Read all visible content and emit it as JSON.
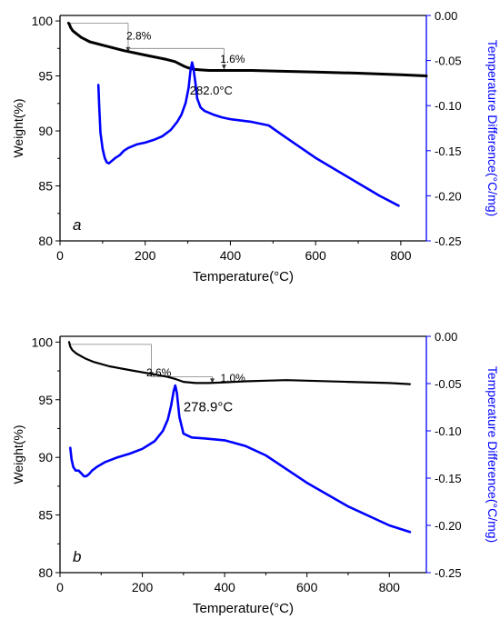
{
  "chart_data": [
    {
      "type": "line",
      "panel_label": "a",
      "xlabel": "Temperature(°C)",
      "ylabel_left": "Weight(%)",
      "ylabel_right": "Temperature Difference(°C/mg)",
      "xlim": [
        0,
        860
      ],
      "ylim_left": [
        80,
        100.5
      ],
      "ylim_right": [
        -0.25,
        0.0
      ],
      "x_ticks": [
        "0",
        "200",
        "400",
        "600",
        "800"
      ],
      "y_left_ticks": [
        "80",
        "85",
        "90",
        "95",
        "100"
      ],
      "y_right_ticks": [
        "0.00",
        "-0.05",
        "-0.10",
        "-0.15",
        "-0.20",
        "-0.25"
      ],
      "colors": {
        "weight": "#000000",
        "dta": "#0000ff"
      },
      "series": [
        {
          "axis": "left",
          "color": "#000000",
          "x": [
            20,
            22,
            25,
            30,
            40,
            50,
            70,
            100,
            150,
            200,
            250,
            270,
            290,
            300,
            315,
            330,
            350,
            400,
            450,
            500,
            600,
            700,
            800,
            860
          ],
          "values": [
            99.8,
            99.7,
            99.4,
            99.1,
            98.8,
            98.5,
            98.1,
            97.8,
            97.3,
            96.9,
            96.5,
            96.3,
            95.9,
            95.75,
            95.6,
            95.55,
            95.5,
            95.5,
            95.5,
            95.45,
            95.35,
            95.25,
            95.1,
            95.0
          ]
        },
        {
          "axis": "right",
          "color": "#0000ff",
          "x": [
            90,
            92,
            95,
            100,
            105,
            110,
            115,
            120,
            130,
            140,
            150,
            160,
            180,
            200,
            220,
            240,
            260,
            275,
            285,
            295,
            302,
            306,
            310,
            313,
            318,
            322,
            330,
            340,
            360,
            380,
            400,
            450,
            490,
            520,
            560,
            600,
            650,
            700,
            750,
            795
          ],
          "values": [
            -0.077,
            -0.1,
            -0.13,
            -0.148,
            -0.158,
            -0.163,
            -0.164,
            -0.162,
            -0.158,
            -0.155,
            -0.15,
            -0.147,
            -0.143,
            -0.141,
            -0.138,
            -0.134,
            -0.127,
            -0.118,
            -0.11,
            -0.097,
            -0.08,
            -0.062,
            -0.052,
            -0.058,
            -0.075,
            -0.092,
            -0.102,
            -0.106,
            -0.11,
            -0.113,
            -0.115,
            -0.118,
            -0.122,
            -0.132,
            -0.145,
            -0.158,
            -0.172,
            -0.186,
            -0.2,
            -0.211
          ]
        }
      ],
      "annotations": [
        {
          "text": "2.8%",
          "x": 185,
          "y": 98.3
        },
        {
          "text": "1.6%",
          "x": 405,
          "y": 96.2
        },
        {
          "text": "282.0°C",
          "x": 355,
          "y": 93.3,
          "sup_o": true
        }
      ],
      "marks": [
        {
          "type": "step",
          "axis": "left",
          "x_start": 20,
          "x_end": 160,
          "y_top": 99.8,
          "y_bottom": 97.2
        },
        {
          "type": "step",
          "axis": "left",
          "x_start": 160,
          "x_end": 385,
          "y_top": 97.5,
          "y_bottom": 95.6
        }
      ]
    },
    {
      "type": "line",
      "panel_label": "b",
      "xlabel": "Temperature(°C)",
      "ylabel_left": "Weight(%)",
      "ylabel_right": "Temperature Difference(°C/mg)",
      "xlim": [
        0,
        890
      ],
      "ylim_left": [
        80,
        100.5
      ],
      "ylim_right": [
        -0.25,
        0.0
      ],
      "x_ticks": [
        "0",
        "200",
        "400",
        "600",
        "800"
      ],
      "y_left_ticks": [
        "80",
        "85",
        "90",
        "95",
        "100"
      ],
      "y_right_ticks": [
        "0.00",
        "-0.05",
        "-0.10",
        "-0.15",
        "-0.20",
        "-0.25"
      ],
      "colors": {
        "weight": "#000000",
        "dta": "#0000ff"
      },
      "series": [
        {
          "axis": "left",
          "color": "#000000",
          "x": [
            22,
            25,
            30,
            40,
            60,
            80,
            120,
            180,
            230,
            260,
            280,
            300,
            330,
            360,
            400,
            450,
            500,
            550,
            600,
            700,
            800,
            850
          ],
          "values": [
            100.0,
            99.6,
            99.3,
            99.0,
            98.6,
            98.3,
            97.9,
            97.5,
            97.2,
            97.0,
            96.8,
            96.55,
            96.45,
            96.45,
            96.5,
            96.6,
            96.65,
            96.7,
            96.65,
            96.55,
            96.45,
            96.35
          ]
        },
        {
          "axis": "right",
          "color": "#0000ff",
          "x": [
            25,
            28,
            32,
            38,
            45,
            52,
            58,
            64,
            70,
            78,
            90,
            110,
            140,
            170,
            200,
            230,
            250,
            262,
            270,
            276,
            280,
            284,
            290,
            300,
            320,
            350,
            400,
            450,
            500,
            600,
            700,
            800,
            850
          ],
          "values": [
            -0.118,
            -0.13,
            -0.138,
            -0.142,
            -0.142,
            -0.145,
            -0.148,
            -0.148,
            -0.146,
            -0.142,
            -0.138,
            -0.133,
            -0.128,
            -0.124,
            -0.119,
            -0.111,
            -0.1,
            -0.088,
            -0.073,
            -0.058,
            -0.052,
            -0.06,
            -0.085,
            -0.103,
            -0.107,
            -0.108,
            -0.11,
            -0.116,
            -0.126,
            -0.155,
            -0.18,
            -0.2,
            -0.207
          ]
        }
      ],
      "annotations": [
        {
          "text": "2.6%",
          "x": 240,
          "y": 97.05
        },
        {
          "text": "1.0%",
          "x": 420,
          "y": 96.55
        },
        {
          "text": "278.9°C",
          "x": 360,
          "y": 94.0,
          "sup_o": true
        }
      ],
      "marks": [
        {
          "type": "step",
          "axis": "left",
          "x_start": 25,
          "x_end": 222,
          "y_top": 99.8,
          "y_bottom": 97.0
        },
        {
          "type": "step",
          "axis": "left",
          "x_start": 222,
          "x_end": 370,
          "y_top": 97.0,
          "y_bottom": 96.45
        }
      ]
    }
  ]
}
